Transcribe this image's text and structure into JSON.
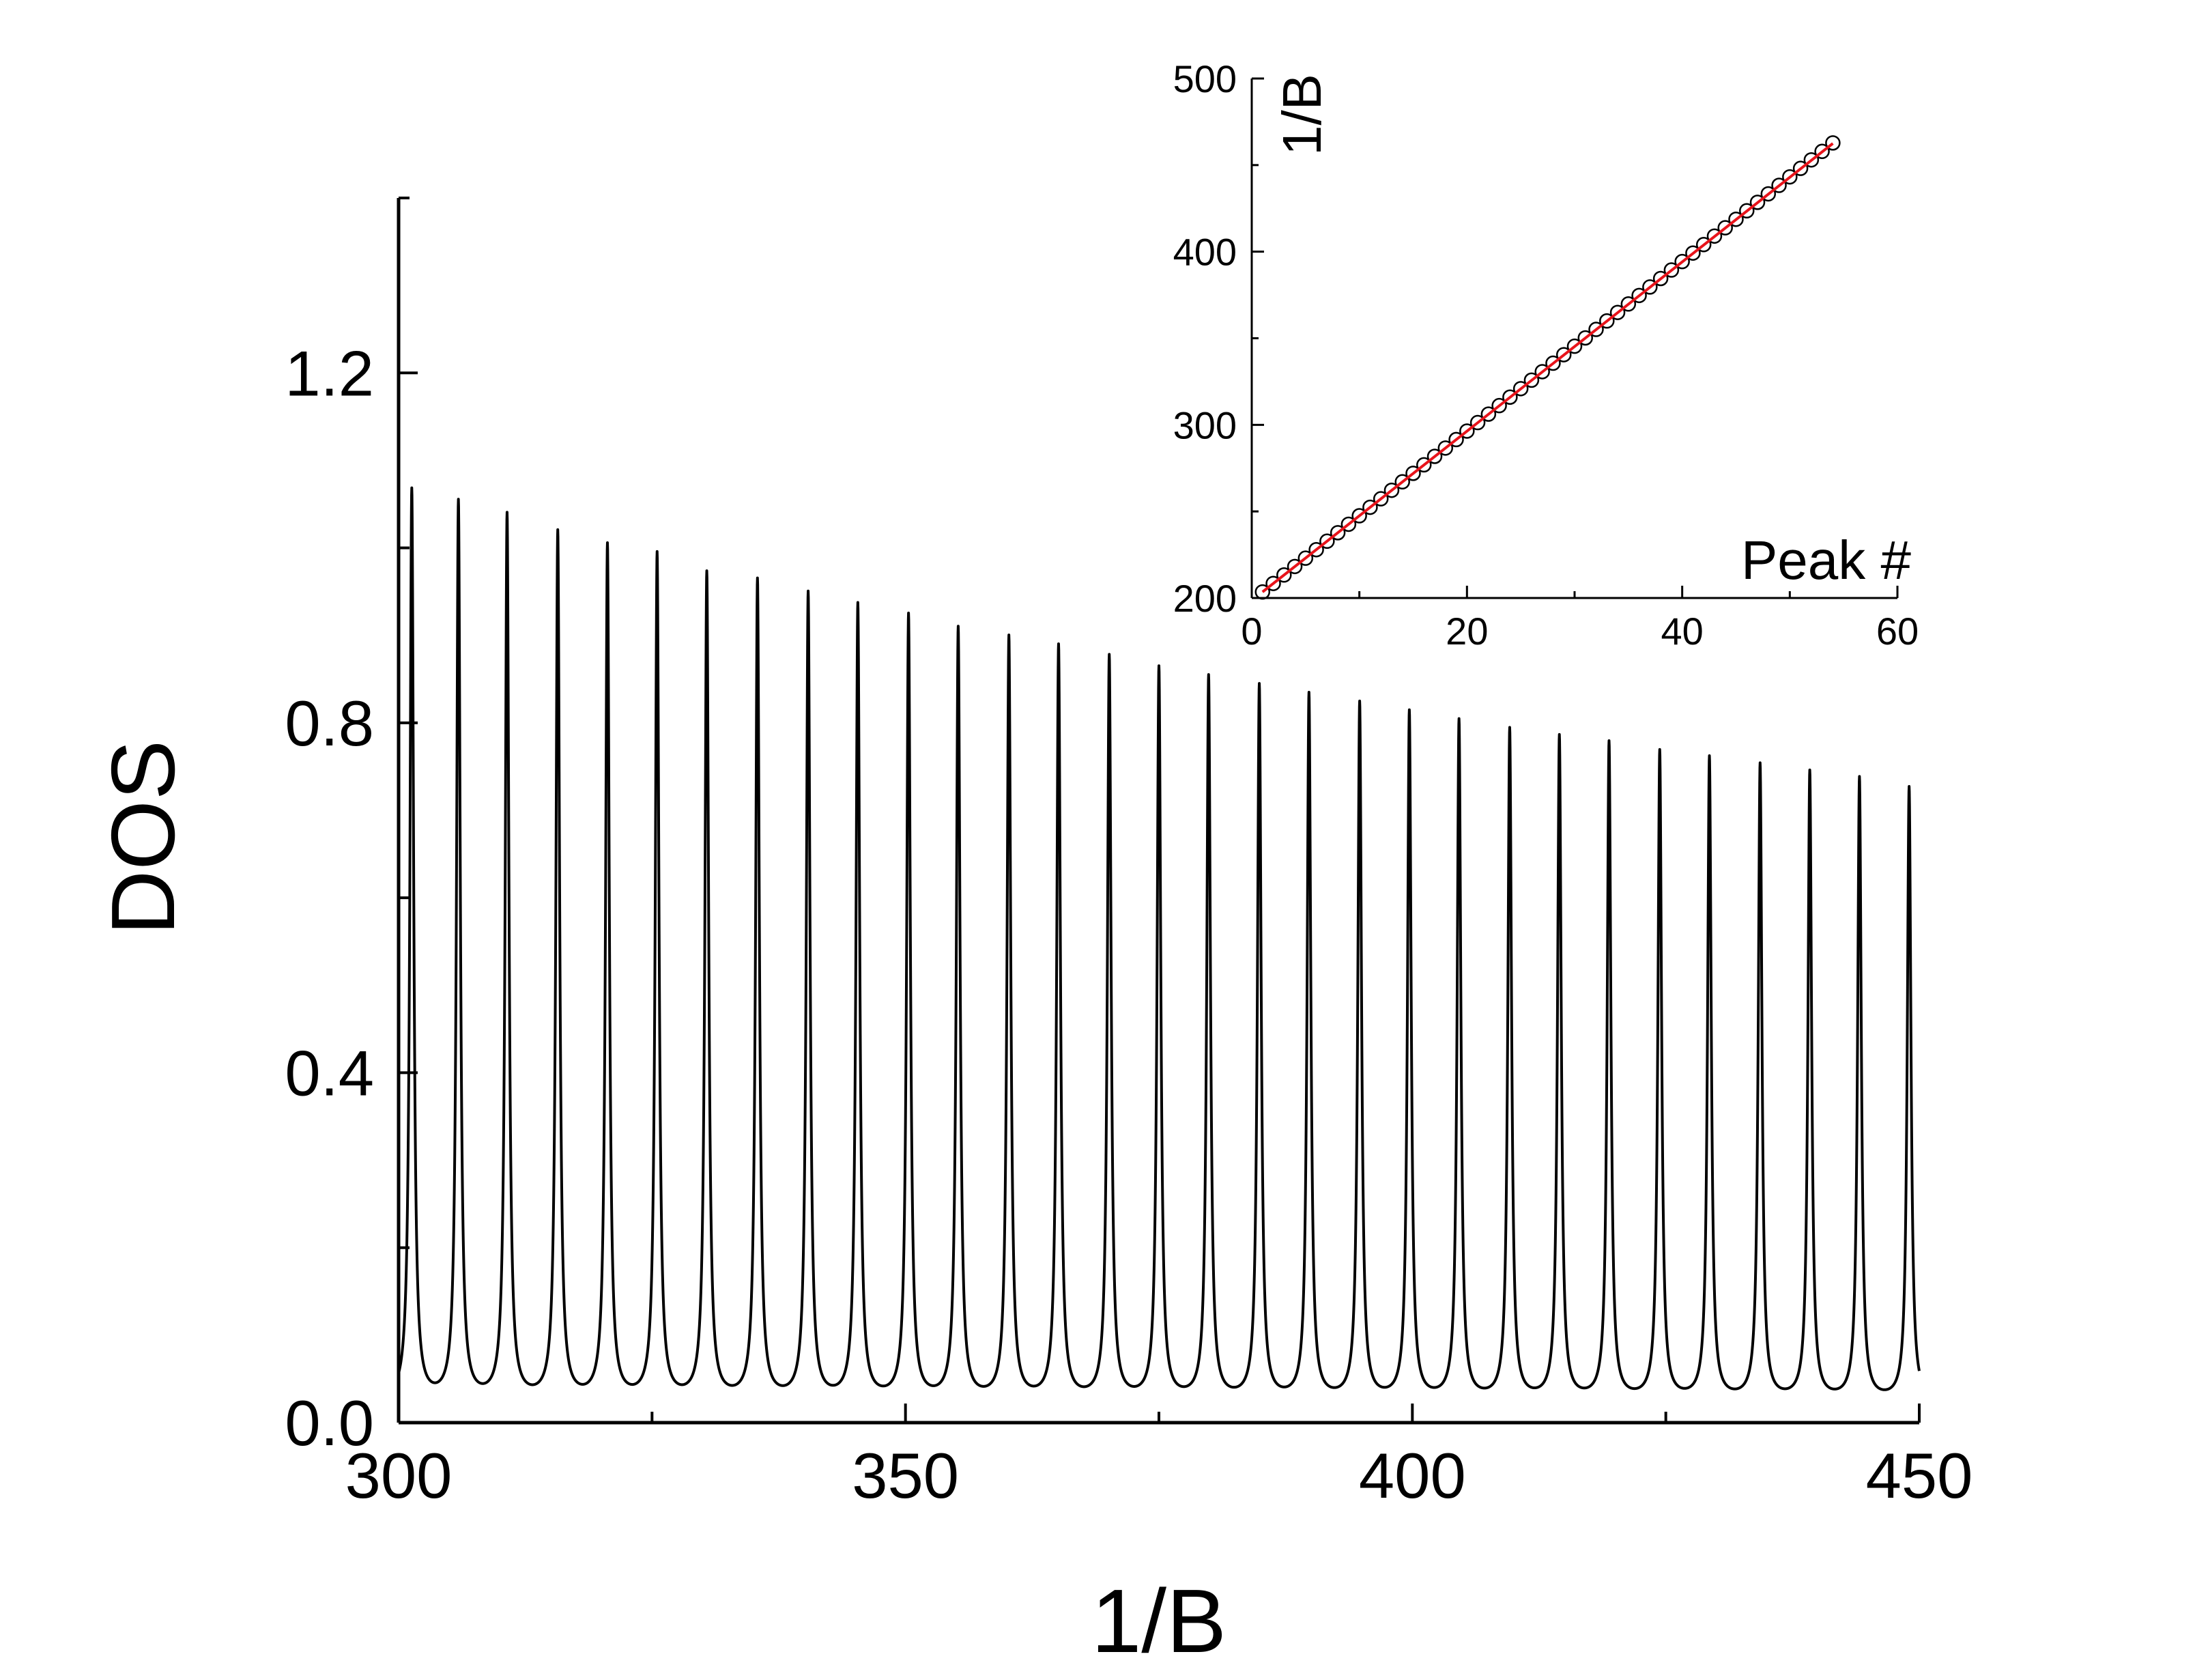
{
  "chart_data": [
    {
      "id": "main",
      "type": "line",
      "xlabel": "1/B",
      "ylabel": "DOS",
      "xlim": [
        300,
        450
      ],
      "ylim": [
        0,
        1.4
      ],
      "x_ticks": [
        "300",
        "350",
        "400",
        "450"
      ],
      "y_ticks": [
        "0.0",
        "0.4",
        "0.8",
        "1.2"
      ],
      "grid": false,
      "legend": "none",
      "line_color": "#000000",
      "baseline": 0.025,
      "peak_width": 0.22,
      "peaks": {
        "x": [
          301.3,
          305.9,
          310.7,
          315.7,
          320.6,
          325.5,
          330.4,
          335.4,
          340.4,
          345.3,
          350.3,
          355.2,
          360.2,
          365.1,
          370.1,
          375.0,
          379.9,
          384.9,
          389.8,
          394.8,
          399.7,
          404.6,
          409.6,
          414.5,
          419.4,
          424.4,
          429.3,
          434.3,
          439.2,
          444.1,
          449.0
        ],
        "y": [
          1.065,
          1.05,
          1.035,
          1.015,
          1.0,
          0.99,
          0.968,
          0.96,
          0.945,
          0.932,
          0.92,
          0.905,
          0.895,
          0.885,
          0.873,
          0.86,
          0.85,
          0.84,
          0.83,
          0.82,
          0.81,
          0.8,
          0.79,
          0.782,
          0.775,
          0.765,
          0.758,
          0.75,
          0.742,
          0.735,
          0.725
        ]
      }
    },
    {
      "id": "inset",
      "type": "scatter",
      "xlabel": "Peak #",
      "ylabel": "1/B",
      "xlim": [
        0,
        60
      ],
      "ylim": [
        200,
        500
      ],
      "x_ticks": [
        "0",
        "20",
        "40",
        "60"
      ],
      "y_ticks": [
        "200",
        "300",
        "400",
        "500"
      ],
      "marker": "open-circle",
      "marker_color": "#000000",
      "fit_line": {
        "color": "#e8141b",
        "x": [
          1,
          54
        ],
        "y": [
          203.5,
          462.5
        ]
      },
      "points": {
        "x": [
          1,
          2,
          3,
          4,
          5,
          6,
          7,
          8,
          9,
          10,
          11,
          12,
          13,
          14,
          15,
          16,
          17,
          18,
          19,
          20,
          21,
          22,
          23,
          24,
          25,
          26,
          27,
          28,
          29,
          30,
          31,
          32,
          33,
          34,
          35,
          36,
          37,
          38,
          39,
          40,
          41,
          42,
          43,
          44,
          45,
          46,
          47,
          48,
          49,
          50,
          51,
          52,
          53,
          54
        ],
        "y": [
          203.5,
          208.4,
          213.3,
          218.2,
          223.0,
          227.9,
          232.8,
          237.7,
          242.6,
          247.5,
          252.4,
          257.3,
          262.2,
          267.1,
          272.0,
          276.9,
          281.8,
          286.6,
          291.5,
          296.4,
          301.3,
          306.2,
          311.1,
          316.0,
          320.9,
          325.8,
          330.7,
          335.6,
          340.5,
          345.4,
          350.2,
          355.1,
          360.0,
          364.9,
          369.8,
          374.7,
          379.6,
          384.5,
          389.4,
          394.3,
          399.2,
          404.1,
          409.0,
          413.8,
          418.7,
          423.6,
          428.5,
          433.4,
          438.3,
          443.2,
          448.1,
          453.0,
          457.9,
          462.8
        ]
      }
    }
  ]
}
